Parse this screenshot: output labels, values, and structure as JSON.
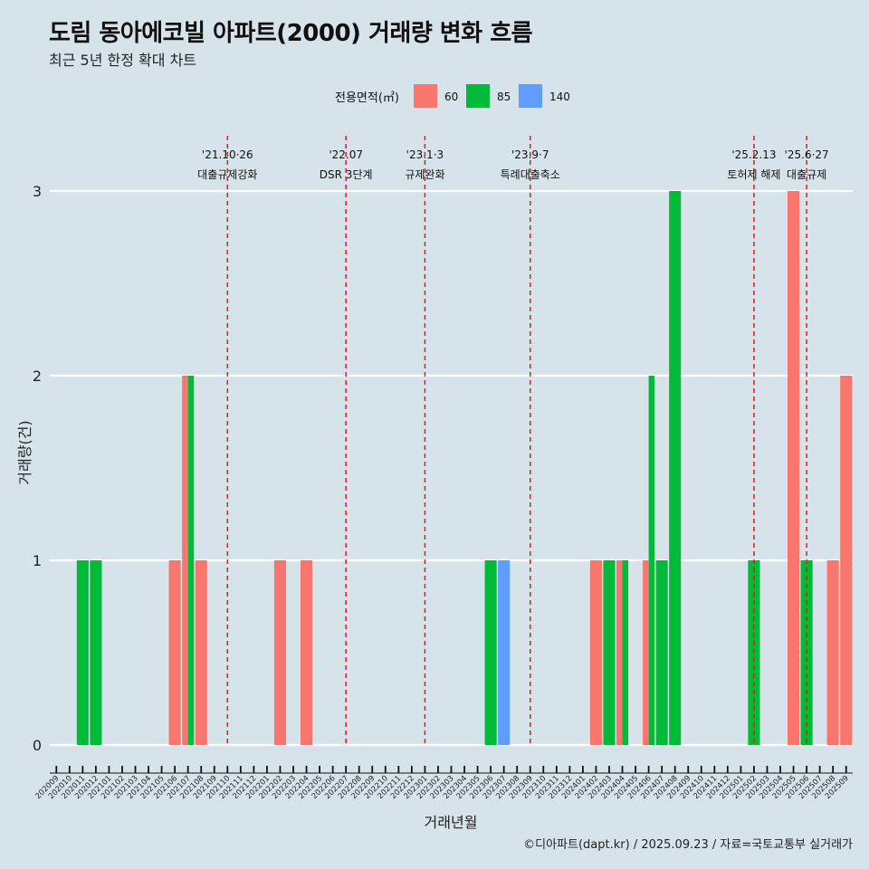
{
  "title": "도림 동아에코빌 아파트(2000) 거래량 변화 흐름",
  "subtitle": "최근 5년 한정 확대 차트",
  "caption": "©디아파트(dapt.kr) / 2025.09.23 / 자료=국토교통부 실거래가",
  "chart_data": {
    "type": "bar",
    "xlabel": "거래년월",
    "ylabel": "거래량(건)",
    "ylim": [
      0,
      3
    ],
    "yticks": [
      0,
      1,
      2,
      3
    ],
    "legend": {
      "title": "전용면적(㎡)",
      "position": "top",
      "entries": [
        {
          "name": "60",
          "color": "#f8766d"
        },
        {
          "name": "85",
          "color": "#00ba38"
        },
        {
          "name": "140",
          "color": "#619cff"
        }
      ]
    },
    "categories": [
      "202009",
      "202010",
      "202011",
      "202012",
      "202101",
      "202102",
      "202103",
      "202104",
      "202105",
      "202106",
      "202107",
      "202108",
      "202109",
      "202110",
      "202111",
      "202112",
      "202201",
      "202202",
      "202203",
      "202204",
      "202205",
      "202206",
      "202207",
      "202208",
      "202209",
      "202210",
      "202211",
      "202212",
      "202301",
      "202302",
      "202303",
      "202304",
      "202305",
      "202306",
      "202307",
      "202308",
      "202309",
      "202310",
      "202311",
      "202312",
      "202401",
      "202402",
      "202403",
      "202404",
      "202405",
      "202406",
      "202407",
      "202408",
      "202409",
      "202410",
      "202411",
      "202412",
      "202501",
      "202502",
      "202503",
      "202504",
      "202505",
      "202506",
      "202507",
      "202508",
      "202509"
    ],
    "series": [
      {
        "name": "60",
        "color": "#f8766d",
        "values": [
          0,
          0,
          0,
          0,
          0,
          0,
          0,
          0,
          0,
          1,
          2,
          1,
          0,
          0,
          0,
          0,
          0,
          1,
          0,
          1,
          0,
          0,
          0,
          0,
          0,
          0,
          0,
          0,
          0,
          0,
          0,
          0,
          0,
          0,
          0,
          0,
          0,
          0,
          0,
          0,
          0,
          1,
          0,
          1,
          0,
          1,
          0,
          0,
          0,
          0,
          0,
          0,
          0,
          0,
          0,
          0,
          3,
          0,
          0,
          1,
          2
        ]
      },
      {
        "name": "85",
        "color": "#00ba38",
        "values": [
          0,
          0,
          1,
          1,
          0,
          0,
          0,
          0,
          0,
          0,
          2,
          0,
          0,
          0,
          0,
          0,
          0,
          0,
          0,
          0,
          0,
          0,
          0,
          0,
          0,
          0,
          0,
          0,
          0,
          0,
          0,
          0,
          0,
          1,
          0,
          0,
          0,
          0,
          0,
          0,
          0,
          0,
          1,
          1,
          0,
          2,
          1,
          3,
          0,
          0,
          0,
          0,
          0,
          1,
          0,
          0,
          0,
          1,
          0,
          0,
          0
        ]
      },
      {
        "name": "140",
        "color": "#619cff",
        "values": [
          0,
          0,
          0,
          0,
          0,
          0,
          0,
          0,
          0,
          0,
          0,
          0,
          0,
          0,
          0,
          0,
          0,
          0,
          0,
          0,
          0,
          0,
          0,
          0,
          0,
          0,
          0,
          0,
          0,
          0,
          0,
          0,
          0,
          0,
          1,
          0,
          0,
          0,
          0,
          0,
          0,
          0,
          0,
          0,
          0,
          0,
          0,
          0,
          0,
          0,
          0,
          0,
          0,
          0,
          0,
          0,
          0,
          0,
          0,
          0,
          0
        ]
      }
    ],
    "annotations": [
      {
        "date_label": "'21.10·26",
        "text": "대출규제강화",
        "month": "202110"
      },
      {
        "date_label": "'22.07",
        "text": "DSR 3단계",
        "month": "202207"
      },
      {
        "date_label": "'23.1·3",
        "text": "규제완화",
        "month": "202301"
      },
      {
        "date_label": "'23.9·7",
        "text": "특례대출축소",
        "month": "202309"
      },
      {
        "date_label": "'25.2.13",
        "text": "토허제 해제",
        "month": "202502"
      },
      {
        "date_label": "'25.6·27",
        "text": "대출규제",
        "month": "202506"
      }
    ]
  }
}
